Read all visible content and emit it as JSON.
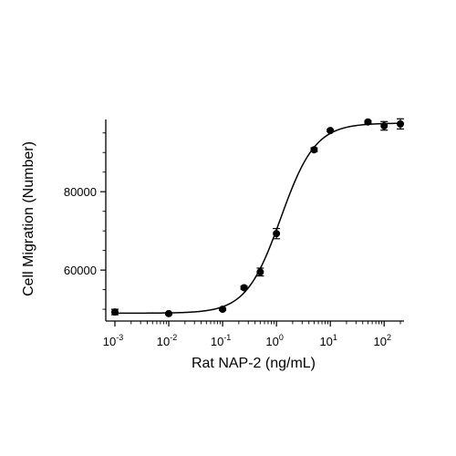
{
  "chart_data": {
    "type": "scatter",
    "title": "",
    "xlabel": "Rat NAP-2 (ng/mL)",
    "ylabel": "Cell Migration (Number)",
    "x_scale": "log",
    "xlim": [
      0.001,
      200
    ],
    "ylim": [
      47000,
      97500
    ],
    "x_ticks": [
      {
        "value": 0.001,
        "base": "10",
        "exp": "-3"
      },
      {
        "value": 0.01,
        "base": "10",
        "exp": "-2"
      },
      {
        "value": 0.1,
        "base": "10",
        "exp": "-1"
      },
      {
        "value": 1,
        "base": "10",
        "exp": "0"
      },
      {
        "value": 10,
        "base": "10",
        "exp": "1"
      },
      {
        "value": 100,
        "base": "10",
        "exp": "2"
      }
    ],
    "y_ticks": [
      {
        "value": 60000,
        "label": "60000"
      },
      {
        "value": 80000,
        "label": "80000"
      }
    ],
    "grid": false,
    "legend": "none",
    "fit_curve": {
      "model": "4PL",
      "bottom": 49000,
      "top": 97500,
      "ec50": 1.2,
      "hill": 1.35
    },
    "points": [
      {
        "x": 0.001,
        "y": 49300,
        "err": 700
      },
      {
        "x": 0.01,
        "y": 48900,
        "err": 300
      },
      {
        "x": 0.1,
        "y": 50000,
        "err": 300
      },
      {
        "x": 0.25,
        "y": 55500,
        "err": 400
      },
      {
        "x": 0.5,
        "y": 59500,
        "err": 1000
      },
      {
        "x": 1,
        "y": 69300,
        "err": 1300
      },
      {
        "x": 5,
        "y": 90700,
        "err": 500
      },
      {
        "x": 10,
        "y": 95600,
        "err": 300
      },
      {
        "x": 50,
        "y": 97800,
        "err": 300
      },
      {
        "x": 100,
        "y": 96800,
        "err": 1100
      },
      {
        "x": 200,
        "y": 97300,
        "err": 1300
      }
    ]
  }
}
